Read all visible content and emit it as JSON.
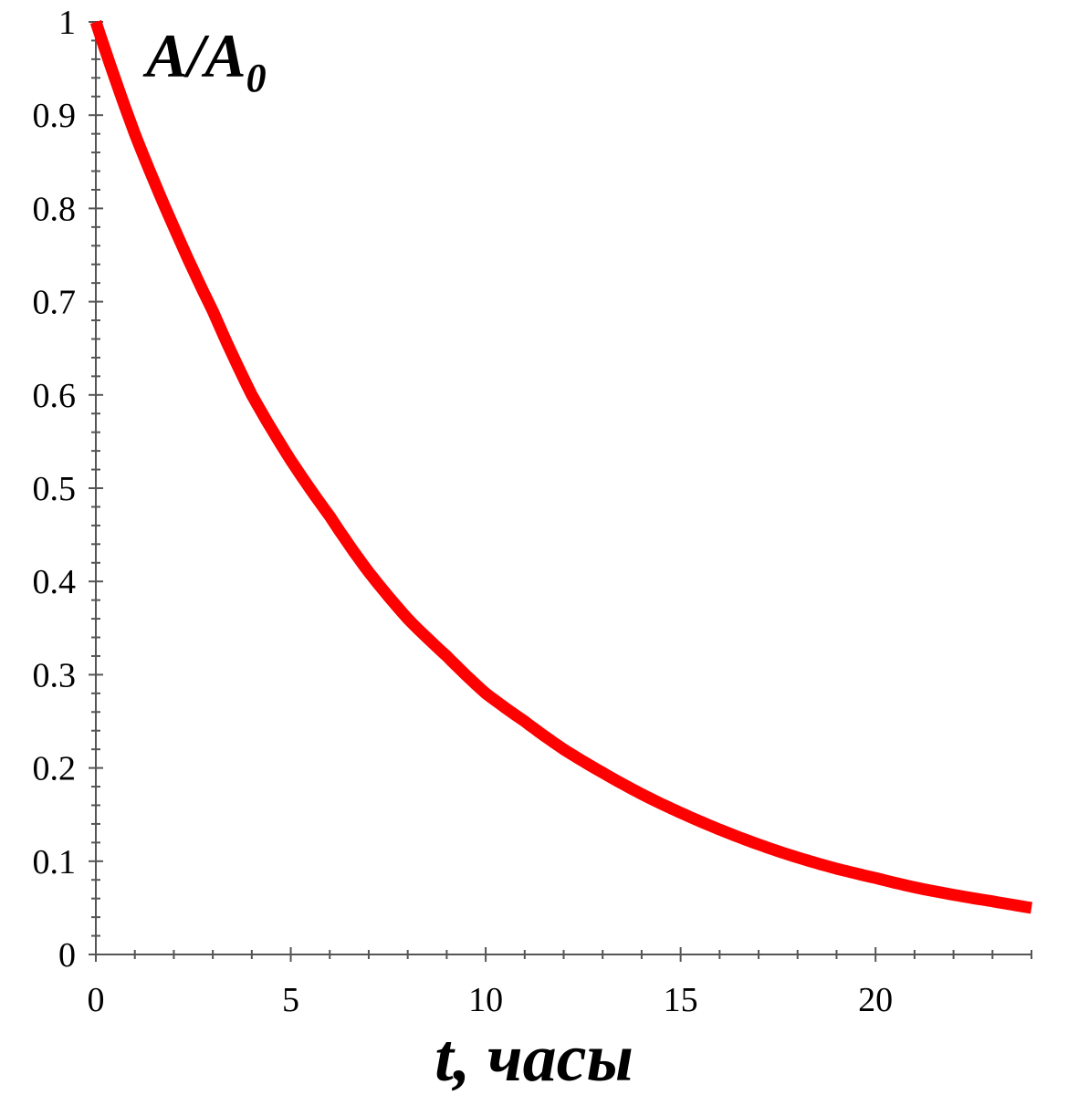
{
  "chart_data": {
    "type": "line",
    "title": "",
    "ylabel_main": "A/A",
    "ylabel_sub": "0",
    "xlabel": "t, часы",
    "xlim": [
      0,
      24
    ],
    "ylim": [
      0,
      1
    ],
    "xticks": [
      "0",
      "5",
      "10",
      "15",
      "20"
    ],
    "yticks": [
      "0",
      "0.1",
      "0.2",
      "0.3",
      "0.4",
      "0.5",
      "0.6",
      "0.7",
      "0.8",
      "0.9",
      "1"
    ],
    "grid": false,
    "line_color": "#ff0000",
    "series": [
      {
        "x": [
          0,
          1,
          2,
          3,
          4,
          5,
          6,
          7,
          8,
          9,
          10,
          11,
          12,
          13,
          14,
          15,
          16,
          17,
          18,
          19,
          20,
          21,
          22,
          23,
          24
        ],
        "y": [
          1.0,
          0.88,
          0.78,
          0.69,
          0.6,
          0.53,
          0.47,
          0.41,
          0.36,
          0.32,
          0.28,
          0.25,
          0.22,
          0.195,
          0.172,
          0.152,
          0.134,
          0.118,
          0.104,
          0.092,
          0.082,
          0.072,
          0.064,
          0.057,
          0.05
        ]
      }
    ]
  }
}
